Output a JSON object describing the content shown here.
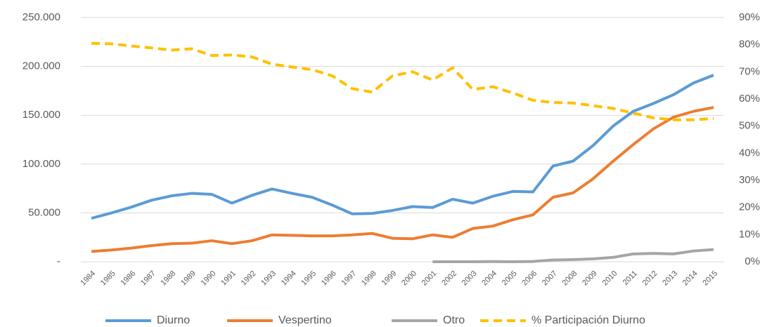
{
  "chart_data": {
    "type": "line",
    "categories": [
      "1984",
      "1985",
      "1986",
      "1987",
      "1988",
      "1989",
      "1990",
      "1991",
      "1992",
      "1993",
      "1994",
      "1995",
      "1996",
      "1997",
      "1998",
      "1999",
      "2000",
      "2001",
      "2002",
      "2003",
      "2004",
      "2005",
      "2006",
      "2007",
      "2008",
      "2009",
      "2010",
      "2011",
      "2012",
      "2013",
      "2014",
      "2015"
    ],
    "series": [
      {
        "name": "Diurno",
        "color": "#5b9bd5",
        "values": [
          44500,
          50000,
          56000,
          63000,
          67500,
          70000,
          69000,
          60000,
          68000,
          74500,
          70000,
          66000,
          58000,
          49000,
          49500,
          52500,
          56500,
          55500,
          64000,
          60000,
          67000,
          72000,
          71500,
          98000,
          103000,
          119000,
          139000,
          154000,
          162000,
          171000,
          183000,
          191000
        ]
      },
      {
        "name": "Vespertino",
        "color": "#ed7d31",
        "values": [
          10500,
          12000,
          14000,
          16500,
          18500,
          19000,
          21500,
          18500,
          21500,
          27500,
          27000,
          26500,
          26500,
          27500,
          29000,
          24000,
          23500,
          27500,
          25000,
          34000,
          36500,
          43000,
          48000,
          66000,
          70500,
          85000,
          103000,
          120000,
          136000,
          148000,
          154000,
          158000
        ]
      },
      {
        "name": "Otro",
        "color": "#a5a5a5",
        "values": [
          null,
          null,
          null,
          null,
          null,
          null,
          null,
          null,
          null,
          null,
          null,
          null,
          null,
          null,
          null,
          null,
          null,
          0,
          0,
          0,
          200,
          0,
          300,
          1800,
          2200,
          3000,
          4500,
          8000,
          8500,
          8000,
          11000,
          12500
        ]
      },
      {
        "name": "% Participación Diurno",
        "color": "#ffc000",
        "dashed": true,
        "axis": "y2",
        "values": [
          80.5,
          80.3,
          79.5,
          78.8,
          78,
          78.5,
          76,
          76.2,
          75.5,
          72.8,
          71.8,
          70.8,
          68.5,
          63.8,
          62.5,
          68.5,
          70,
          67,
          71.5,
          63.5,
          64.5,
          62.2,
          59.5,
          58.7,
          58.5,
          57.5,
          56.5,
          54.8,
          53,
          52.3,
          52.3,
          52.8
        ]
      }
    ],
    "ylim": [
      0,
      250000
    ],
    "yticks": [
      {
        "value": 0,
        "label": "-"
      },
      {
        "value": 50000,
        "label": "50.000"
      },
      {
        "value": 100000,
        "label": "100.000"
      },
      {
        "value": 150000,
        "label": "150.000"
      },
      {
        "value": 200000,
        "label": "200.000"
      },
      {
        "value": 250000,
        "label": "250.000"
      }
    ],
    "y2lim": [
      0,
      90
    ],
    "y2ticks": [
      {
        "value": 0,
        "label": "0%"
      },
      {
        "value": 10,
        "label": "10%"
      },
      {
        "value": 20,
        "label": "20%"
      },
      {
        "value": 30,
        "label": "30%"
      },
      {
        "value": 40,
        "label": "40%"
      },
      {
        "value": 50,
        "label": "50%"
      },
      {
        "value": 60,
        "label": "60%"
      },
      {
        "value": 70,
        "label": "70%"
      },
      {
        "value": 80,
        "label": "80%"
      },
      {
        "value": 90,
        "label": "90%"
      }
    ],
    "grid": true,
    "legend": "bottom"
  }
}
